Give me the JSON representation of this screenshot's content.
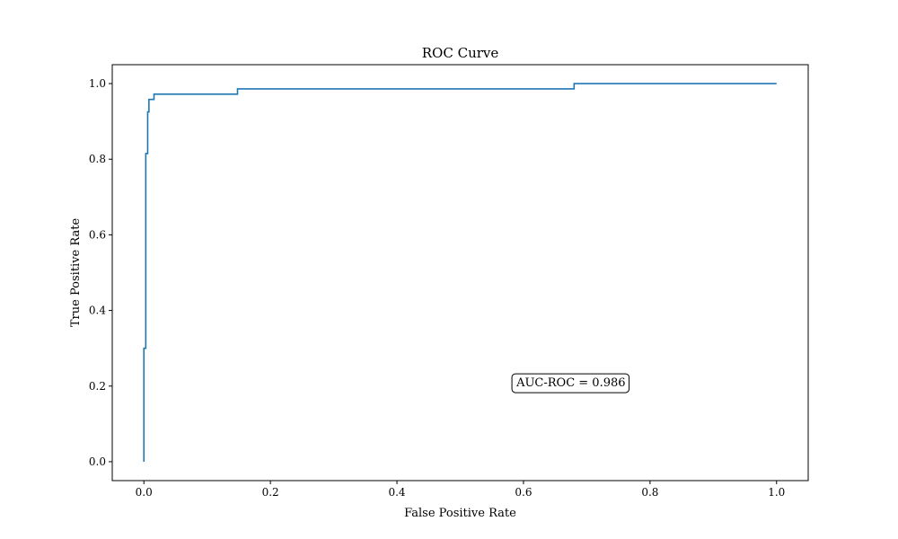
{
  "chart_data": {
    "type": "line",
    "title": "ROC Curve",
    "xlabel": "False Positive Rate",
    "ylabel": "True Positive Rate",
    "xlim": [
      -0.05,
      1.05
    ],
    "ylim": [
      -0.05,
      1.05
    ],
    "xticks": [
      "0.0",
      "0.2",
      "0.4",
      "0.6",
      "0.8",
      "1.0"
    ],
    "yticks": [
      "0.0",
      "0.2",
      "0.4",
      "0.6",
      "0.8",
      "1.0"
    ],
    "grid": false,
    "series": [
      {
        "color": "#1f77b4",
        "x": [
          0.0,
          0.0,
          0.003,
          0.003,
          0.006,
          0.006,
          0.008,
          0.008,
          0.016,
          0.016,
          0.148,
          0.148,
          0.68,
          0.68,
          1.0
        ],
        "y": [
          0.0,
          0.3,
          0.3,
          0.815,
          0.815,
          0.925,
          0.925,
          0.958,
          0.958,
          0.972,
          0.972,
          0.986,
          0.986,
          1.0,
          1.0
        ]
      }
    ],
    "annotations": [
      {
        "text": "AUC-ROC = 0.986",
        "x": 0.675,
        "y": 0.21
      }
    ]
  }
}
